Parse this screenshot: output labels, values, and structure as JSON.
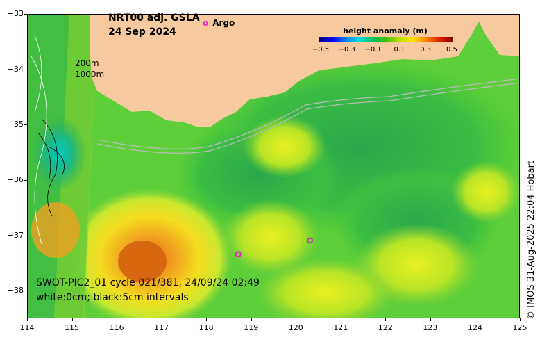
{
  "title": {
    "line1": "NRT00 adj. GSLA",
    "line2": "24 Sep 2024"
  },
  "argo_legend": {
    "symbol": "o",
    "label": "Argo"
  },
  "colorbar": {
    "title": "height anomaly (m)",
    "ticks": [
      "−0.5",
      "−0.3",
      "−0.1",
      "0.1",
      "0.3",
      "0.5"
    ]
  },
  "depth_labels": {
    "shallow": "200m",
    "deep": "1000m"
  },
  "swot_caption": {
    "line1": "SWOT-PIC2_01 cycle 021/381, 24/09/24 02:49",
    "line2": "white:0cm; black:5cm intervals"
  },
  "credit": "© IMOS 31-Aug-2025 22:04 Hobart",
  "axes": {
    "x_ticks": [
      "114",
      "115",
      "116",
      "117",
      "118",
      "119",
      "120",
      "121",
      "122",
      "123",
      "124",
      "125"
    ],
    "y_ticks": [
      "−33",
      "−34",
      "−35",
      "−36",
      "−37",
      "−38"
    ],
    "lon_range": [
      114,
      125
    ],
    "lat_range": [
      -38.5,
      -33
    ]
  },
  "argo_floats": [
    {
      "lon": 118.7,
      "lat": -37.33
    },
    {
      "lon": 120.3,
      "lat": -37.08
    }
  ],
  "colors": {
    "land": "#f7c99e",
    "ocean_base": "#5ecf3a",
    "argo": "#e020c0"
  }
}
